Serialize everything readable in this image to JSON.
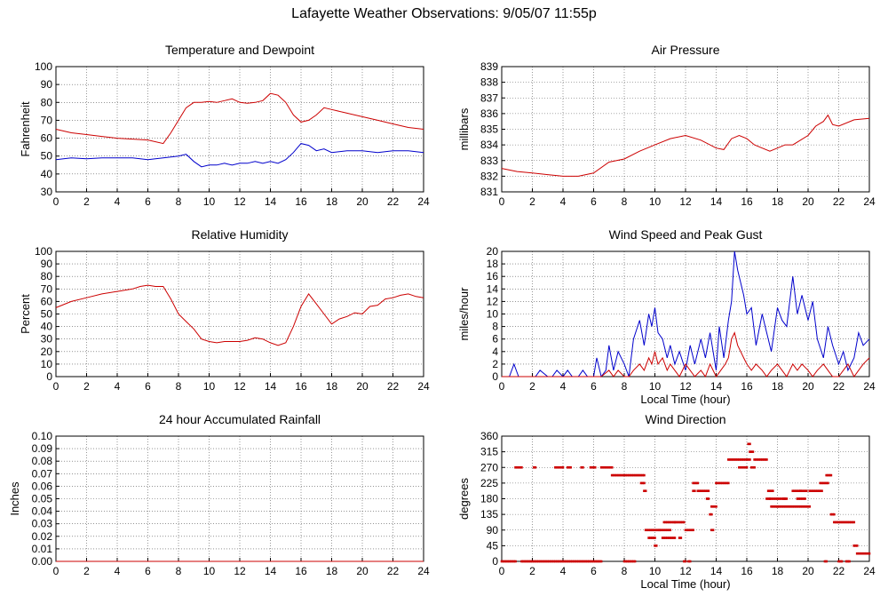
{
  "page": {
    "title": "Lafayette Weather Observations: 9/05/07 11:55p"
  },
  "colors": {
    "red": "#cc0000",
    "blue": "#0000cc",
    "grid": "#000000"
  },
  "chart_data": [
    {
      "id": "temperature",
      "type": "line",
      "title": "Temperature and Dewpoint",
      "xlabel": "",
      "ylabel": "Fahrenheit",
      "xlim": [
        0,
        24
      ],
      "ylim": [
        30,
        100
      ],
      "xticks": [
        0,
        2,
        4,
        6,
        8,
        10,
        12,
        14,
        16,
        18,
        20,
        22,
        24
      ],
      "yticks": [
        30,
        40,
        50,
        60,
        70,
        80,
        90,
        100
      ],
      "grid": true,
      "series": [
        {
          "color": "#cc0000",
          "x": [
            0,
            1,
            2,
            3,
            4,
            5,
            6,
            7,
            7.5,
            8,
            8.5,
            9,
            9.5,
            10,
            10.5,
            11,
            11.5,
            12,
            12.5,
            13,
            13.5,
            14,
            14.5,
            15,
            15.5,
            16,
            16.5,
            17,
            17.5,
            18,
            19,
            20,
            21,
            22,
            23,
            24
          ],
          "y": [
            65,
            63,
            62,
            61,
            60,
            59.5,
            59,
            57,
            63,
            70,
            77,
            80,
            80,
            80.5,
            80,
            81,
            82,
            80,
            79.5,
            80,
            81,
            85,
            84,
            80,
            73,
            69,
            70,
            73,
            77,
            76,
            74,
            72,
            70,
            68,
            66,
            65
          ]
        },
        {
          "color": "#0000cc",
          "x": [
            0,
            1,
            2,
            3,
            4,
            5,
            6,
            7,
            8,
            8.5,
            9,
            9.5,
            10,
            10.5,
            11,
            11.5,
            12,
            12.5,
            13,
            13.5,
            14,
            14.5,
            15,
            15.5,
            16,
            16.5,
            17,
            17.5,
            18,
            19,
            20,
            21,
            22,
            23,
            24
          ],
          "y": [
            48,
            49,
            48.5,
            49,
            49,
            49,
            48,
            49,
            50,
            51,
            47,
            44,
            45,
            45,
            46,
            45,
            46,
            46,
            47,
            46,
            47,
            46,
            48,
            52,
            57,
            56,
            53,
            54,
            52,
            53,
            53,
            52,
            53,
            53,
            52
          ]
        }
      ]
    },
    {
      "id": "pressure",
      "type": "line",
      "title": "Air Pressure",
      "xlabel": "",
      "ylabel": "millibars",
      "xlim": [
        0,
        24
      ],
      "ylim": [
        831,
        839
      ],
      "xticks": [
        0,
        2,
        4,
        6,
        8,
        10,
        12,
        14,
        16,
        18,
        20,
        22,
        24
      ],
      "yticks": [
        831,
        832,
        833,
        834,
        835,
        836,
        837,
        838,
        839
      ],
      "grid": true,
      "series": [
        {
          "color": "#cc0000",
          "x": [
            0,
            1,
            2,
            3,
            4,
            5,
            6,
            7,
            8,
            9,
            10,
            11,
            12,
            13,
            14,
            14.5,
            15,
            15.5,
            16,
            16.5,
            17,
            17.5,
            18,
            18.5,
            19,
            20,
            20.5,
            21,
            21.3,
            21.6,
            22,
            23,
            24
          ],
          "y": [
            832.5,
            832.3,
            832.2,
            832.1,
            832,
            832,
            832.2,
            832.9,
            833.1,
            833.6,
            834,
            834.4,
            834.6,
            834.3,
            833.8,
            833.7,
            834.4,
            834.6,
            834.4,
            834,
            833.8,
            833.6,
            833.8,
            834,
            834,
            834.6,
            835.2,
            835.5,
            835.9,
            835.3,
            835.2,
            835.6,
            835.7
          ]
        }
      ]
    },
    {
      "id": "humidity",
      "type": "line",
      "title": "Relative Humidity",
      "xlabel": "",
      "ylabel": "Percent",
      "xlim": [
        0,
        24
      ],
      "ylim": [
        0,
        100
      ],
      "xticks": [
        0,
        2,
        4,
        6,
        8,
        10,
        12,
        14,
        16,
        18,
        20,
        22,
        24
      ],
      "yticks": [
        0,
        10,
        20,
        30,
        40,
        50,
        60,
        70,
        80,
        90,
        100
      ],
      "grid": true,
      "series": [
        {
          "color": "#cc0000",
          "x": [
            0,
            1,
            2,
            3,
            4,
            5,
            5.5,
            6,
            6.5,
            7,
            7.5,
            8,
            8.5,
            9,
            9.5,
            10,
            10.5,
            11,
            11.5,
            12,
            12.5,
            13,
            13.5,
            14,
            14.5,
            15,
            15.5,
            16,
            16.5,
            17,
            17.5,
            18,
            18.5,
            19,
            19.5,
            20,
            20.5,
            21,
            21.5,
            22,
            22.5,
            23,
            23.5,
            24
          ],
          "y": [
            55,
            60,
            63,
            66,
            68,
            70,
            72,
            73,
            72,
            72,
            62,
            50,
            44,
            38,
            30,
            28,
            27,
            28,
            28,
            28,
            29,
            31,
            30,
            27,
            25,
            27,
            40,
            56,
            66,
            58,
            50,
            42,
            46,
            48,
            51,
            50,
            56,
            57,
            62,
            63,
            65,
            66,
            64,
            63
          ]
        }
      ]
    },
    {
      "id": "wind",
      "type": "line",
      "title": "Wind Speed and Peak Gust",
      "xlabel": "Local Time (hour)",
      "ylabel": "miles/hour",
      "xlim": [
        0,
        24
      ],
      "ylim": [
        0,
        20
      ],
      "xticks": [
        0,
        2,
        4,
        6,
        8,
        10,
        12,
        14,
        16,
        18,
        20,
        22,
        24
      ],
      "yticks": [
        0,
        2,
        4,
        6,
        8,
        10,
        12,
        14,
        16,
        18,
        20
      ],
      "grid": true,
      "series": [
        {
          "color": "#0000cc",
          "x": [
            0,
            0.5,
            0.8,
            1.1,
            1.5,
            2,
            2.2,
            2.5,
            3,
            3.3,
            3.6,
            4,
            4.3,
            4.6,
            5,
            5.3,
            5.6,
            6,
            6.2,
            6.5,
            6.8,
            7,
            7.3,
            7.6,
            8,
            8.3,
            8.6,
            9,
            9.3,
            9.6,
            9.8,
            10,
            10.2,
            10.5,
            10.8,
            11,
            11.3,
            11.6,
            12,
            12.3,
            12.6,
            13,
            13.3,
            13.6,
            14,
            14.2,
            14.5,
            14.8,
            15,
            15.2,
            15.4,
            15.6,
            15.8,
            16,
            16.3,
            16.6,
            17,
            17.3,
            17.6,
            18,
            18.3,
            18.6,
            19,
            19.3,
            19.6,
            20,
            20.3,
            20.6,
            21,
            21.3,
            21.6,
            22,
            22.3,
            22.6,
            23,
            23.3,
            23.6,
            24
          ],
          "y": [
            0,
            0,
            2,
            0,
            0,
            0,
            0,
            1,
            0,
            0,
            1,
            0,
            1,
            0,
            0,
            1,
            0,
            0,
            3,
            0,
            1,
            5,
            1,
            4,
            2,
            0,
            6,
            9,
            5,
            10,
            8,
            11,
            7,
            6,
            3,
            5,
            2,
            4,
            1,
            5,
            2,
            6,
            3,
            7,
            1,
            8,
            3,
            9,
            12,
            20,
            17,
            15,
            13,
            10,
            11,
            5,
            10,
            7,
            4,
            11,
            9,
            8,
            16,
            10,
            13,
            9,
            12,
            6,
            3,
            8,
            5,
            2,
            4,
            1,
            3,
            7,
            5,
            6
          ]
        },
        {
          "color": "#cc0000",
          "x": [
            0,
            1,
            2,
            3,
            4,
            5,
            6,
            6.5,
            7,
            7.3,
            7.6,
            8,
            8.3,
            8.6,
            9,
            9.3,
            9.6,
            9.8,
            10,
            10.2,
            10.5,
            10.8,
            11,
            11.3,
            11.6,
            12,
            12.3,
            12.6,
            13,
            13.3,
            13.6,
            14,
            14.3,
            14.6,
            14.8,
            15,
            15.2,
            15.4,
            15.6,
            15.8,
            16,
            16.3,
            16.6,
            17,
            17.3,
            17.6,
            18,
            18.3,
            18.6,
            19,
            19.3,
            19.6,
            20,
            20.3,
            20.6,
            21,
            21.3,
            21.6,
            22,
            22.3,
            22.6,
            23,
            23.3,
            23.6,
            24
          ],
          "y": [
            0,
            0,
            0,
            0,
            0,
            0,
            0,
            0,
            1,
            0,
            1,
            0,
            0,
            1,
            2,
            1,
            3,
            2,
            4,
            2,
            3,
            1,
            2,
            1,
            0,
            2,
            1,
            0,
            1,
            0,
            2,
            0,
            1,
            2,
            3,
            6,
            7,
            5,
            4,
            3,
            2,
            1,
            2,
            1,
            0,
            1,
            2,
            1,
            0,
            2,
            1,
            2,
            1,
            0,
            1,
            2,
            1,
            0,
            0,
            1,
            2,
            0,
            1,
            2,
            3
          ]
        }
      ]
    },
    {
      "id": "rainfall",
      "type": "line",
      "title": "24 hour Accumulated Rainfall",
      "xlabel": "",
      "ylabel": "Inches",
      "xlim": [
        0,
        24
      ],
      "ylim": [
        0,
        0.1
      ],
      "xticks": [
        0,
        2,
        4,
        6,
        8,
        10,
        12,
        14,
        16,
        18,
        20,
        22,
        24
      ],
      "yticks": [
        "0.00",
        "0.01",
        "0.02",
        "0.03",
        "0.04",
        "0.05",
        "0.06",
        "0.07",
        "0.08",
        "0.09",
        "0.10"
      ],
      "grid": true,
      "series": [
        {
          "color": "#cc0000",
          "x": [
            0,
            24
          ],
          "y": [
            0,
            0
          ]
        }
      ]
    },
    {
      "id": "direction",
      "type": "scatter",
      "title": "Wind Direction",
      "xlabel": "Local Time (hour)",
      "ylabel": "degrees",
      "xlim": [
        0,
        24
      ],
      "ylim": [
        0,
        360
      ],
      "xticks": [
        0,
        2,
        4,
        6,
        8,
        10,
        12,
        14,
        16,
        18,
        20,
        22,
        24
      ],
      "yticks": [
        0,
        45,
        90,
        135,
        180,
        225,
        270,
        315,
        360
      ],
      "grid": true,
      "series": [
        {
          "color": "#cc0000",
          "runs": [
            [
              0,
              0.9,
              0
            ],
            [
              0.9,
              1.3,
              270
            ],
            [
              1.3,
              3.7,
              0
            ],
            [
              2.1,
              2.2,
              270
            ],
            [
              3.5,
              4.0,
              270
            ],
            [
              3.8,
              6.5,
              0
            ],
            [
              4.3,
              4.5,
              270
            ],
            [
              5.2,
              5.3,
              270
            ],
            [
              5.8,
              6.1,
              270
            ],
            [
              6.5,
              7.2,
              270
            ],
            [
              7.2,
              9.3,
              247.5
            ],
            [
              8.0,
              8.7,
              0
            ],
            [
              9.1,
              9.3,
              225
            ],
            [
              9.3,
              9.4,
              202.5
            ],
            [
              9.4,
              10.3,
              90
            ],
            [
              9.6,
              10.0,
              67.5
            ],
            [
              10.0,
              10.1,
              45
            ],
            [
              10.3,
              11.0,
              90
            ],
            [
              10.5,
              11.1,
              67.5
            ],
            [
              10.6,
              11.3,
              112.5
            ],
            [
              11.2,
              11.3,
              67.5
            ],
            [
              11.3,
              11.9,
              112.5
            ],
            [
              11.6,
              11.7,
              67.5
            ],
            [
              11.9,
              12.0,
              0
            ],
            [
              12.0,
              12.5,
              90
            ],
            [
              12.2,
              12.3,
              0
            ],
            [
              12.5,
              12.8,
              225
            ],
            [
              12.5,
              12.6,
              202.5
            ],
            [
              12.8,
              13.5,
              202.5
            ],
            [
              13.4,
              13.5,
              180
            ],
            [
              13.6,
              13.7,
              135
            ],
            [
              13.7,
              13.8,
              90
            ],
            [
              13.7,
              14.0,
              157.5
            ],
            [
              14.0,
              14.8,
              225
            ],
            [
              14.8,
              16.2,
              292.5
            ],
            [
              15.5,
              16.0,
              270
            ],
            [
              16.1,
              16.2,
              337.5
            ],
            [
              16.2,
              16.4,
              315
            ],
            [
              16.3,
              16.5,
              270
            ],
            [
              16.5,
              17.3,
              292.5
            ],
            [
              17.3,
              17.5,
              180
            ],
            [
              17.4,
              17.7,
              202.5
            ],
            [
              17.5,
              18.5,
              180
            ],
            [
              17.6,
              18.0,
              157.5
            ],
            [
              18.0,
              19.1,
              157.5
            ],
            [
              18.4,
              18.6,
              180
            ],
            [
              19.0,
              19.5,
              202.5
            ],
            [
              19.2,
              20.1,
              157.5
            ],
            [
              19.3,
              19.8,
              180
            ],
            [
              19.5,
              19.9,
              202.5
            ],
            [
              20.1,
              20.9,
              202.5
            ],
            [
              20.8,
              21.3,
              225
            ],
            [
              21.1,
              21.2,
              0
            ],
            [
              21.2,
              21.5,
              247.5
            ],
            [
              21.5,
              21.7,
              135
            ],
            [
              21.7,
              23.0,
              112.5
            ],
            [
              22.0,
              22.2,
              0
            ],
            [
              22.5,
              22.7,
              0
            ],
            [
              23.0,
              23.2,
              45
            ],
            [
              23.2,
              24.0,
              22.5
            ]
          ]
        }
      ]
    }
  ]
}
